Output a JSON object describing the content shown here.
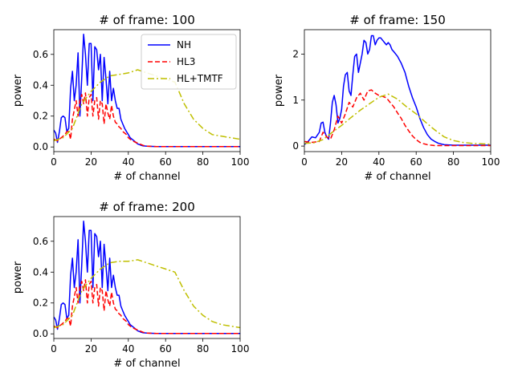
{
  "legend": {
    "placement": "upper right of first panel",
    "entries": [
      {
        "name": "NH",
        "color": "#0000ff",
        "dash": "solid"
      },
      {
        "name": "HL3",
        "color": "#ff0000",
        "dash": "dashed"
      },
      {
        "name": "HL+TMTF",
        "color": "#bfbf00",
        "dash": "dashdot"
      }
    ]
  },
  "chart_data": [
    {
      "type": "line",
      "title": "# of frame: 100",
      "xlabel": "# of channel",
      "ylabel": "power",
      "xlim": [
        0,
        100
      ],
      "ylim": [
        -0.03,
        0.76
      ],
      "xticks": [
        0,
        20,
        40,
        60,
        80,
        100
      ],
      "yticks": [
        0.0,
        0.2,
        0.4,
        0.6
      ],
      "ytick_labels": [
        "0.0",
        "0.2",
        "0.4",
        "0.6"
      ],
      "grid": false,
      "legend": true,
      "series": [
        {
          "name": "NH",
          "color": "#0000ff",
          "dash": "solid",
          "x": [
            0,
            1,
            2,
            3,
            4,
            5,
            6,
            7,
            8,
            9,
            10,
            11,
            12,
            13,
            14,
            15,
            16,
            17,
            18,
            19,
            20,
            21,
            22,
            23,
            24,
            25,
            26,
            27,
            28,
            29,
            30,
            31,
            32,
            33,
            34,
            35,
            36,
            37,
            38,
            39,
            40,
            41,
            42,
            43,
            44,
            45,
            46,
            47,
            48,
            50,
            55,
            60,
            70,
            80,
            90,
            100
          ],
          "y": [
            0.11,
            0.09,
            0.03,
            0.1,
            0.19,
            0.2,
            0.19,
            0.1,
            0.12,
            0.38,
            0.49,
            0.3,
            0.4,
            0.61,
            0.2,
            0.45,
            0.73,
            0.6,
            0.4,
            0.67,
            0.67,
            0.3,
            0.65,
            0.63,
            0.5,
            0.6,
            0.3,
            0.58,
            0.44,
            0.28,
            0.49,
            0.3,
            0.38,
            0.3,
            0.25,
            0.25,
            0.18,
            0.15,
            0.12,
            0.1,
            0.08,
            0.06,
            0.05,
            0.04,
            0.03,
            0.02,
            0.015,
            0.01,
            0.007,
            0.005,
            0.003,
            0.002,
            0.002,
            0.002,
            0.002,
            0.002
          ]
        },
        {
          "name": "HL3",
          "color": "#ff0000",
          "dash": "dashed",
          "x": [
            0,
            2,
            4,
            6,
            7,
            8,
            9,
            10,
            11,
            12,
            13,
            14,
            15,
            16,
            17,
            18,
            19,
            20,
            21,
            22,
            23,
            24,
            25,
            26,
            27,
            28,
            29,
            30,
            31,
            32,
            33,
            34,
            35,
            36,
            37,
            38,
            39,
            40,
            42,
            44,
            46,
            48,
            50,
            55,
            60,
            70,
            80,
            90,
            100
          ],
          "y": [
            0.05,
            0.04,
            0.06,
            0.08,
            0.1,
            0.1,
            0.05,
            0.18,
            0.24,
            0.3,
            0.2,
            0.3,
            0.34,
            0.28,
            0.35,
            0.2,
            0.32,
            0.34,
            0.2,
            0.3,
            0.32,
            0.18,
            0.3,
            0.28,
            0.15,
            0.28,
            0.22,
            0.18,
            0.27,
            0.2,
            0.16,
            0.15,
            0.13,
            0.12,
            0.1,
            0.09,
            0.08,
            0.06,
            0.04,
            0.03,
            0.02,
            0.01,
            0.005,
            0.002,
            0.002,
            0.002,
            0.002,
            0.002,
            0.002
          ]
        },
        {
          "name": "HL+TMTF",
          "color": "#bfbf00",
          "dash": "dashdot",
          "x": [
            0,
            5,
            10,
            15,
            20,
            25,
            30,
            35,
            40,
            45,
            50,
            55,
            60,
            65,
            70,
            75,
            80,
            85,
            90,
            95,
            100
          ],
          "y": [
            0.04,
            0.06,
            0.12,
            0.28,
            0.36,
            0.42,
            0.46,
            0.47,
            0.48,
            0.5,
            0.48,
            0.46,
            0.44,
            0.42,
            0.28,
            0.18,
            0.12,
            0.08,
            0.07,
            0.06,
            0.05
          ]
        }
      ]
    },
    {
      "type": "line",
      "title": "# of frame: 150",
      "xlabel": "# of channel",
      "ylabel": "power",
      "xlim": [
        0,
        100
      ],
      "ylim": [
        -0.12,
        2.53
      ],
      "xticks": [
        0,
        20,
        40,
        60,
        80,
        100
      ],
      "yticks": [
        0,
        1,
        2
      ],
      "ytick_labels": [
        "0",
        "1",
        "2"
      ],
      "grid": false,
      "legend": false,
      "series": [
        {
          "name": "NH",
          "color": "#0000ff",
          "dash": "solid",
          "x": [
            0,
            2,
            4,
            6,
            8,
            9,
            10,
            11,
            12,
            13,
            14,
            15,
            16,
            17,
            18,
            19,
            20,
            21,
            22,
            23,
            24,
            25,
            26,
            27,
            28,
            29,
            30,
            31,
            32,
            33,
            34,
            35,
            36,
            37,
            38,
            39,
            40,
            41,
            42,
            43,
            44,
            45,
            46,
            47,
            48,
            50,
            52,
            54,
            56,
            58,
            60,
            62,
            64,
            66,
            68,
            70,
            72,
            75,
            80,
            90,
            100
          ],
          "y": [
            0.03,
            0.1,
            0.2,
            0.18,
            0.3,
            0.5,
            0.52,
            0.3,
            0.2,
            0.15,
            0.5,
            0.95,
            1.1,
            0.9,
            0.5,
            0.6,
            0.8,
            1.3,
            1.55,
            1.6,
            1.2,
            1.1,
            1.55,
            1.95,
            2.0,
            1.6,
            1.8,
            2.0,
            2.3,
            2.25,
            2.0,
            2.1,
            2.4,
            2.4,
            2.2,
            2.3,
            2.35,
            2.35,
            2.3,
            2.25,
            2.2,
            2.25,
            2.2,
            2.1,
            2.05,
            1.95,
            1.8,
            1.6,
            1.3,
            1.05,
            0.85,
            0.6,
            0.4,
            0.25,
            0.15,
            0.1,
            0.06,
            0.03,
            0.02,
            0.02,
            0.02
          ]
        },
        {
          "name": "HL3",
          "color": "#ff0000",
          "dash": "dashed",
          "x": [
            0,
            4,
            8,
            10,
            12,
            14,
            16,
            18,
            20,
            22,
            24,
            26,
            28,
            30,
            32,
            34,
            36,
            38,
            40,
            42,
            44,
            46,
            48,
            50,
            52,
            54,
            56,
            58,
            60,
            62,
            64,
            66,
            68,
            70,
            75,
            80,
            90,
            100
          ],
          "y": [
            0.1,
            0.08,
            0.1,
            0.3,
            0.2,
            0.15,
            0.35,
            0.65,
            0.5,
            0.7,
            0.95,
            0.85,
            1.05,
            1.15,
            1.0,
            1.2,
            1.22,
            1.15,
            1.1,
            1.08,
            1.05,
            0.95,
            0.85,
            0.72,
            0.6,
            0.45,
            0.33,
            0.22,
            0.14,
            0.08,
            0.05,
            0.03,
            0.02,
            0.01,
            0.01,
            0.01,
            0.01,
            0.01
          ]
        },
        {
          "name": "HL+TMTF",
          "color": "#bfbf00",
          "dash": "dashdot",
          "x": [
            0,
            5,
            10,
            15,
            20,
            25,
            30,
            35,
            40,
            45,
            50,
            55,
            60,
            65,
            70,
            75,
            80,
            85,
            90,
            95,
            100
          ],
          "y": [
            0.06,
            0.07,
            0.14,
            0.3,
            0.45,
            0.62,
            0.78,
            0.92,
            1.06,
            1.13,
            1.02,
            0.85,
            0.7,
            0.52,
            0.35,
            0.2,
            0.12,
            0.08,
            0.06,
            0.05,
            0.04
          ]
        }
      ]
    },
    {
      "type": "line",
      "title": "# of frame: 200",
      "xlabel": "# of channel",
      "ylabel": "power",
      "xlim": [
        0,
        100
      ],
      "ylim": [
        -0.03,
        0.76
      ],
      "xticks": [
        0,
        20,
        40,
        60,
        80,
        100
      ],
      "yticks": [
        0.0,
        0.2,
        0.4,
        0.6
      ],
      "ytick_labels": [
        "0.0",
        "0.2",
        "0.4",
        "0.6"
      ],
      "grid": false,
      "legend": false,
      "series": [
        {
          "name": "NH",
          "color": "#0000ff",
          "dash": "solid",
          "x": [
            0,
            1,
            2,
            3,
            4,
            5,
            6,
            7,
            8,
            9,
            10,
            11,
            12,
            13,
            14,
            15,
            16,
            17,
            18,
            19,
            20,
            21,
            22,
            23,
            24,
            25,
            26,
            27,
            28,
            29,
            30,
            31,
            32,
            33,
            34,
            35,
            36,
            37,
            38,
            39,
            40,
            41,
            42,
            43,
            44,
            45,
            46,
            47,
            48,
            50,
            55,
            60,
            70,
            80,
            90,
            100
          ],
          "y": [
            0.11,
            0.09,
            0.03,
            0.1,
            0.19,
            0.2,
            0.19,
            0.1,
            0.12,
            0.38,
            0.49,
            0.3,
            0.4,
            0.61,
            0.2,
            0.45,
            0.73,
            0.6,
            0.4,
            0.67,
            0.67,
            0.3,
            0.65,
            0.63,
            0.5,
            0.6,
            0.3,
            0.58,
            0.44,
            0.28,
            0.49,
            0.3,
            0.38,
            0.3,
            0.25,
            0.25,
            0.18,
            0.15,
            0.12,
            0.1,
            0.08,
            0.06,
            0.05,
            0.04,
            0.03,
            0.02,
            0.015,
            0.01,
            0.007,
            0.005,
            0.003,
            0.002,
            0.002,
            0.002,
            0.002,
            0.002
          ]
        },
        {
          "name": "HL3",
          "color": "#ff0000",
          "dash": "dashed",
          "x": [
            0,
            2,
            4,
            6,
            7,
            8,
            9,
            10,
            11,
            12,
            13,
            14,
            15,
            16,
            17,
            18,
            19,
            20,
            21,
            22,
            23,
            24,
            25,
            26,
            27,
            28,
            29,
            30,
            31,
            32,
            33,
            34,
            35,
            36,
            37,
            38,
            39,
            40,
            42,
            44,
            46,
            48,
            50,
            55,
            60,
            70,
            80,
            90,
            100
          ],
          "y": [
            0.05,
            0.04,
            0.06,
            0.08,
            0.1,
            0.1,
            0.05,
            0.18,
            0.24,
            0.3,
            0.2,
            0.3,
            0.34,
            0.28,
            0.35,
            0.2,
            0.32,
            0.34,
            0.2,
            0.3,
            0.32,
            0.18,
            0.3,
            0.28,
            0.15,
            0.28,
            0.22,
            0.18,
            0.27,
            0.2,
            0.16,
            0.15,
            0.13,
            0.12,
            0.1,
            0.09,
            0.08,
            0.06,
            0.04,
            0.03,
            0.02,
            0.01,
            0.005,
            0.002,
            0.002,
            0.002,
            0.002,
            0.002,
            0.002
          ]
        },
        {
          "name": "HL+TMTF",
          "color": "#bfbf00",
          "dash": "dashdot",
          "x": [
            0,
            5,
            10,
            15,
            20,
            25,
            30,
            35,
            40,
            45,
            50,
            55,
            60,
            65,
            70,
            75,
            80,
            85,
            90,
            95,
            100
          ],
          "y": [
            0.04,
            0.06,
            0.12,
            0.28,
            0.36,
            0.42,
            0.46,
            0.47,
            0.47,
            0.48,
            0.46,
            0.44,
            0.42,
            0.4,
            0.28,
            0.18,
            0.12,
            0.08,
            0.06,
            0.05,
            0.04
          ]
        }
      ]
    }
  ]
}
